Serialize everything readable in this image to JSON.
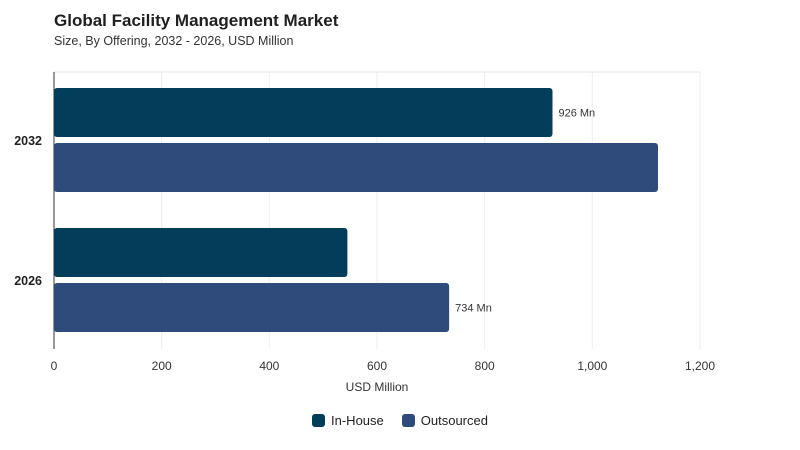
{
  "chart_data": {
    "type": "bar",
    "orientation": "horizontal",
    "title": "Global Facility Management Market",
    "subtitle": "Size, By Offering, 2032 - 2026, USD Million",
    "categories": [
      "2032",
      "2026"
    ],
    "series": [
      {
        "name": "In-House",
        "values": [
          926,
          545
        ],
        "color": "#023e5a"
      },
      {
        "name": "Outsourced",
        "values": [
          1122,
          734
        ],
        "color": "#2f4b7c"
      }
    ],
    "data_labels": [
      {
        "series": "In-House",
        "category": "2032",
        "text": "926 Mn"
      },
      {
        "series": "Outsourced",
        "category": "2026",
        "text": "734 Mn"
      }
    ],
    "xlabel": "USD Million",
    "xlim": [
      0,
      1200
    ],
    "xticks": [
      0,
      200,
      400,
      600,
      800,
      1000,
      1200
    ],
    "xtick_labels": [
      "0",
      "200",
      "400",
      "600",
      "800",
      "1,000",
      "1,200"
    ],
    "grid": true,
    "legend_position": "bottom-center"
  }
}
